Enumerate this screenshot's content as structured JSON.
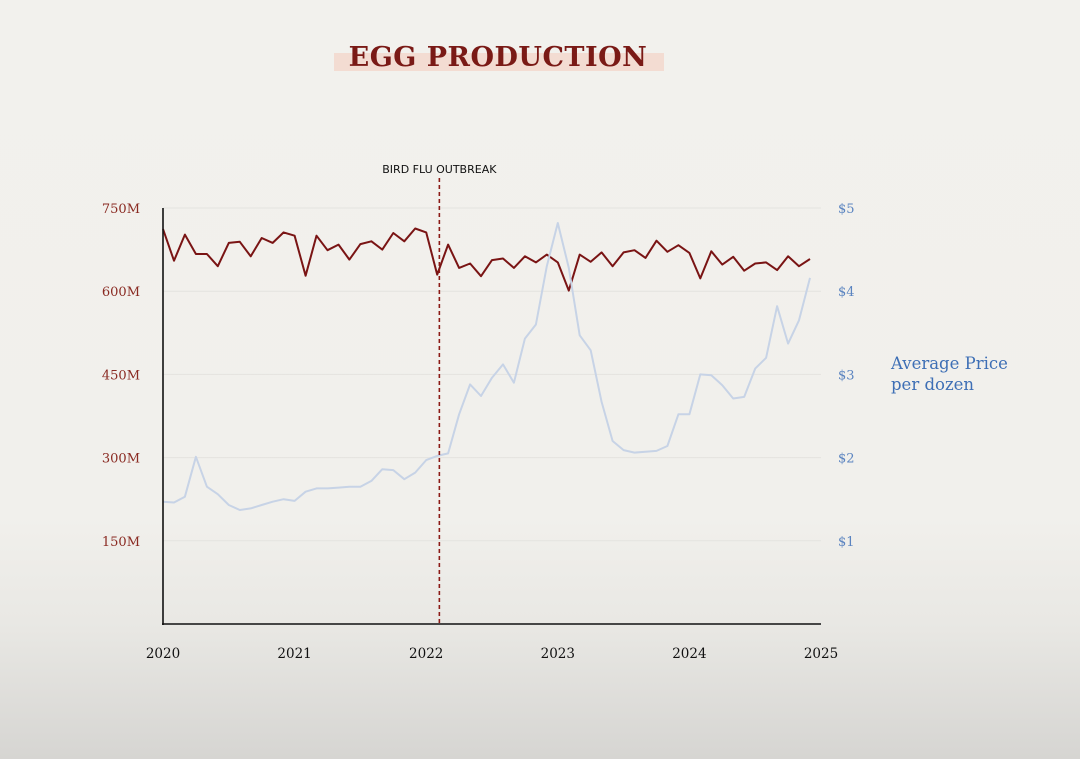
{
  "chart_data": {
    "type": "line",
    "title": "EGG PRODUCTION",
    "x_ticks": [
      "2020",
      "2021",
      "2022",
      "2023",
      "2024",
      "2025"
    ],
    "xlim": [
      2020,
      2025
    ],
    "y_left": {
      "ticks": [
        "750M",
        "600M",
        "450M",
        "300M",
        "150M"
      ],
      "tick_values": [
        750,
        600,
        450,
        300,
        150
      ],
      "range": [
        0,
        750
      ],
      "unit": "M"
    },
    "y_right": {
      "ticks": [
        "$5",
        "$4",
        "$3",
        "$2",
        "$1"
      ],
      "tick_values": [
        5,
        4,
        3,
        2,
        1
      ],
      "range": [
        0,
        5
      ]
    },
    "annotation": {
      "label": "BIRD FLU OUTBREAK",
      "x": 2022.1
    },
    "right_axis_label": "Average Price per dozen",
    "right_axis_label_lines": [
      "Average Price",
      "per dozen"
    ],
    "grid": true,
    "colors": {
      "production": "#7a1414",
      "price": "#c7d3e6",
      "title": "#7a1a16",
      "left_ticks": "#8a2a22",
      "right_ticks": "#5b84c0",
      "legend": "#3e6fb5"
    },
    "series": [
      {
        "axis": "left",
        "x_start": 2020,
        "x_step": 0.08333,
        "values": [
          712,
          655,
          702,
          667,
          667,
          645,
          687,
          689,
          663,
          696,
          687,
          706,
          700,
          628,
          700,
          674,
          684,
          657,
          685,
          690,
          675,
          705,
          690,
          713,
          706,
          630,
          684,
          642,
          650,
          627,
          656,
          659,
          642,
          663,
          652,
          666,
          652,
          601,
          666,
          653,
          670,
          645,
          670,
          674,
          660,
          691,
          671,
          683,
          669,
          623,
          672,
          648,
          662,
          637,
          650,
          652,
          638,
          663,
          645,
          658
        ]
      },
      {
        "name": "Average Price per dozen",
        "axis": "right",
        "x_start": 2020,
        "x_step": 0.08333,
        "values": [
          1.47,
          1.46,
          1.53,
          2.01,
          1.65,
          1.56,
          1.43,
          1.37,
          1.39,
          1.43,
          1.47,
          1.5,
          1.48,
          1.59,
          1.63,
          1.63,
          1.64,
          1.65,
          1.65,
          1.72,
          1.86,
          1.85,
          1.74,
          1.82,
          1.97,
          2.02,
          2.05,
          2.52,
          2.88,
          2.74,
          2.96,
          3.12,
          2.9,
          3.43,
          3.6,
          4.3,
          4.82,
          4.28,
          3.47,
          3.29,
          2.67,
          2.2,
          2.09,
          2.06,
          2.07,
          2.08,
          2.14,
          2.52,
          2.52,
          3.0,
          2.99,
          2.87,
          2.71,
          2.73,
          3.07,
          3.2,
          3.82,
          3.37,
          3.65,
          4.16
        ]
      }
    ]
  }
}
